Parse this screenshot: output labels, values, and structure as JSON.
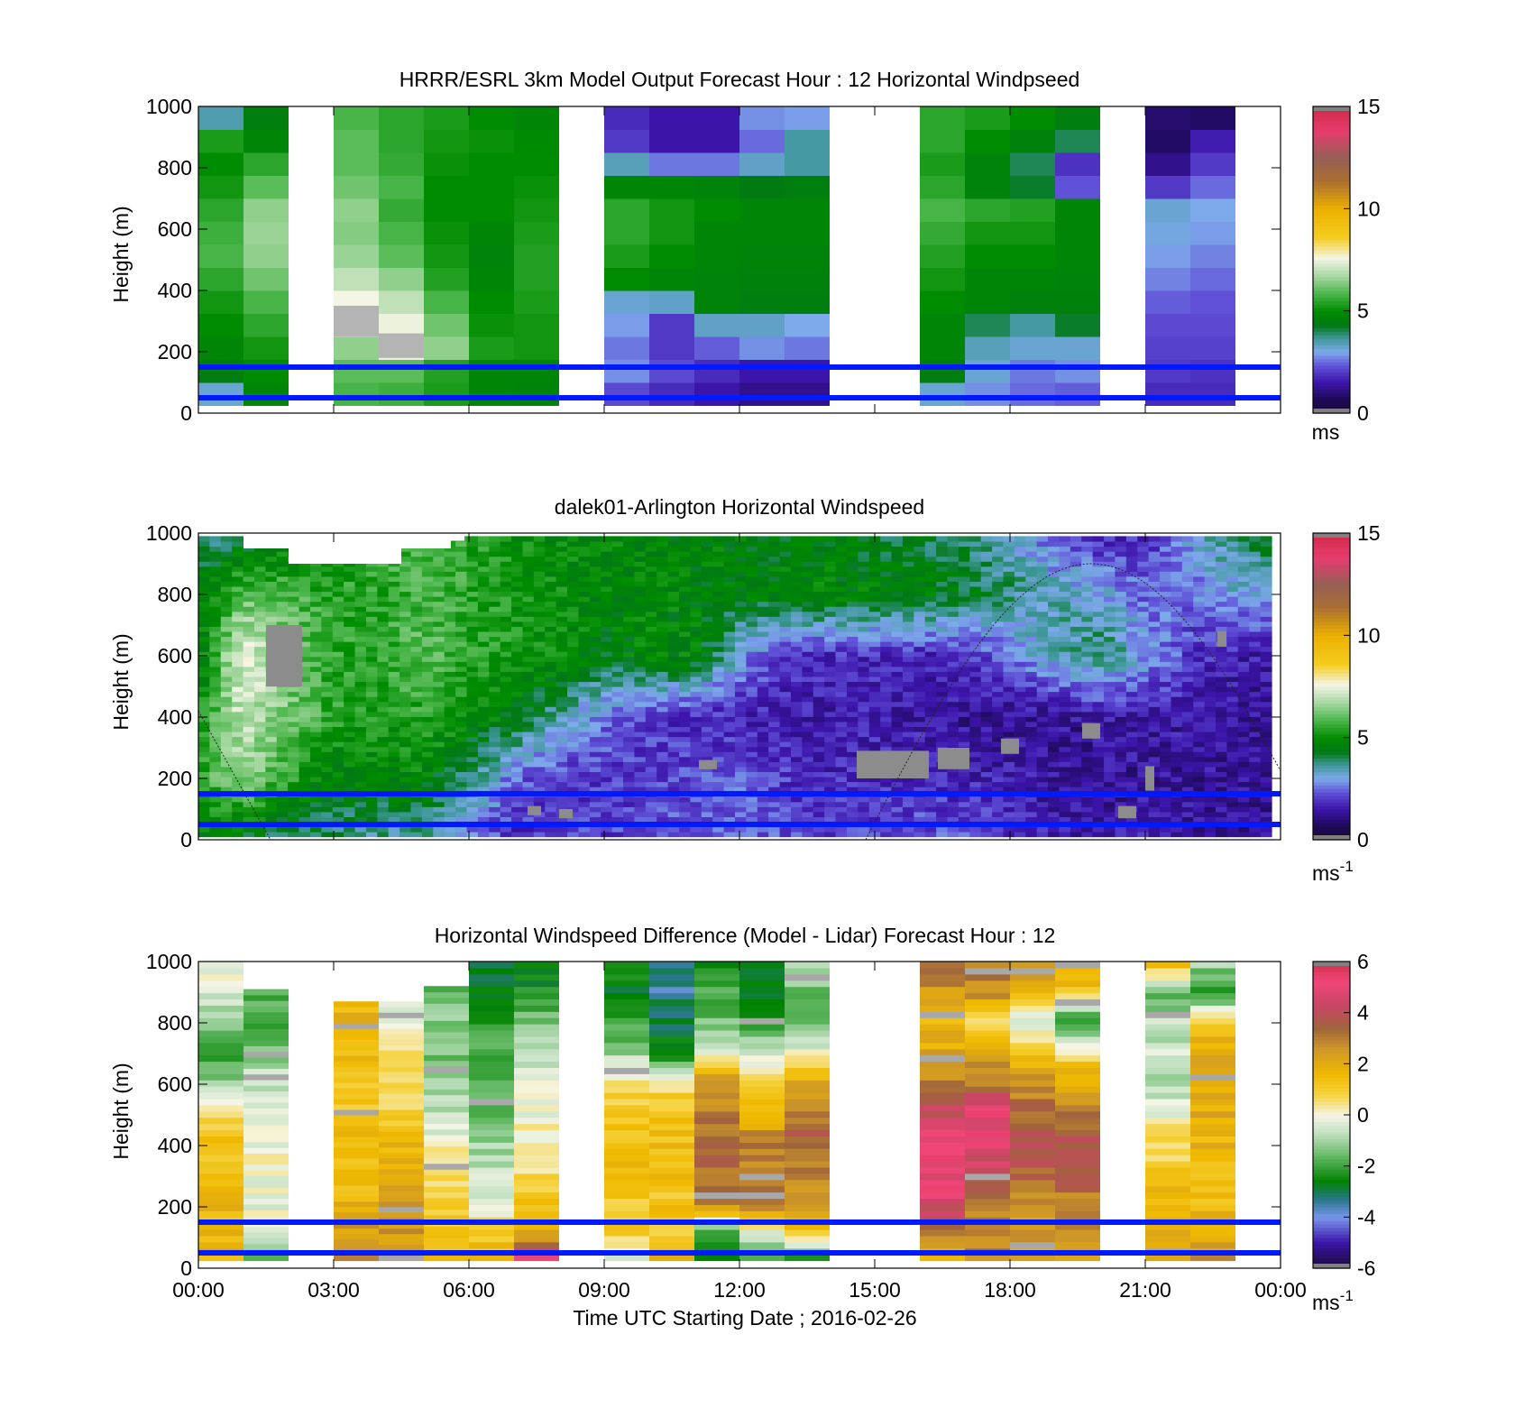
{
  "figure": {
    "xlabel": "Time UTC  Starting Date ; 2016-02-26",
    "xticks": [
      "00:00",
      "03:00",
      "06:00",
      "09:00",
      "12:00",
      "15:00",
      "18:00",
      "21:00",
      "00:00"
    ]
  },
  "chart_data": [
    {
      "type": "heatmap",
      "title": "HRRR/ESRL 3km Model Output   Forecast Hour : 12 Horizontal Windpseed",
      "ylabel": "Height (m)",
      "ylim": [
        0,
        1000
      ],
      "xlim_hours": [
        0,
        24
      ],
      "yticks": [
        "0",
        "200",
        "400",
        "600",
        "800",
        "1000"
      ],
      "colorbar": {
        "ticks": [
          "0",
          "5",
          "10",
          "15"
        ],
        "values": [
          0,
          5,
          10,
          15
        ],
        "range": [
          0,
          15
        ],
        "unit": "ms"
      },
      "hlines_m": [
        150,
        50
      ],
      "cols": [
        {
          "t0": 0,
          "t1": 1,
          "v": [
            3.2,
            4.5,
            4.8,
            5.0,
            5.2,
            5.5,
            5.8,
            5.7,
            5.5,
            5.2,
            5.0,
            5.3,
            3.5
          ]
        },
        {
          "t0": 1,
          "t1": 2,
          "v": [
            4.8,
            5.0,
            5.2,
            5.5,
            5.8,
            6.2,
            6.5,
            6.6,
            6.5,
            6.0,
            5.5,
            4.8,
            4.5
          ]
        },
        {
          "t0": 3,
          "t1": 4,
          "v": [
            5.8,
            6.0,
            6.5,
            7.0,
            7.6,
            7.0,
            6.6,
            6.4,
            6.5,
            6.2,
            6.0,
            6.0,
            5.8
          ]
        },
        {
          "t0": 4,
          "t1": 5,
          "v": [
            5.7,
            6.0,
            7.5,
            7.5,
            7.0,
            6.5,
            6.0,
            5.8,
            5.6,
            5.8,
            5.6,
            5.5,
            5.5
          ]
        },
        {
          "t0": 5,
          "t1": 6,
          "v": [
            5.3,
            5.4,
            6.5,
            6.2,
            5.8,
            5.4,
            5.2,
            5.1,
            5.0,
            5.0,
            5.1,
            5.2,
            5.3
          ]
        },
        {
          "t0": 6,
          "t1": 7,
          "v": [
            4.8,
            4.8,
            5.3,
            5.1,
            5.0,
            4.8,
            4.7,
            4.8,
            5.0,
            5.0,
            5.0,
            5.1,
            5.0
          ]
        },
        {
          "t0": 7,
          "t1": 8,
          "v": [
            4.7,
            4.8,
            5.2,
            5.2,
            5.3,
            5.4,
            5.4,
            5.3,
            5.2,
            5.1,
            5.0,
            4.9,
            4.8
          ]
        },
        {
          "t0": 9,
          "t1": 10,
          "v": [
            2.2,
            2.8,
            2.6,
            2.9,
            3.2,
            5.0,
            5.3,
            5.5,
            5.5,
            4.8,
            3.4,
            2.0,
            1.8
          ]
        },
        {
          "t0": 10,
          "t1": 11,
          "v": [
            1.8,
            2.2,
            2.0,
            2.0,
            3.3,
            4.8,
            5.0,
            5.2,
            5.2,
            4.8,
            2.6,
            1.5,
            1.5
          ]
        },
        {
          "t0": 11,
          "t1": 12,
          "v": [
            1.5,
            1.8,
            2.4,
            3.3,
            4.7,
            4.7,
            4.8,
            4.8,
            5.0,
            4.7,
            2.6,
            1.5,
            1.5
          ]
        },
        {
          "t0": 12,
          "t1": 13,
          "v": [
            1.2,
            1.5,
            2.8,
            3.3,
            4.5,
            4.6,
            4.7,
            4.8,
            4.8,
            4.4,
            3.3,
            2.5,
            2.8
          ]
        },
        {
          "t0": 13,
          "t1": 14,
          "v": [
            1.2,
            1.5,
            2.6,
            3.0,
            4.5,
            4.6,
            4.7,
            4.8,
            4.8,
            4.5,
            3.6,
            3.6,
            2.9
          ]
        },
        {
          "t0": 16,
          "t1": 17,
          "v": [
            3.2,
            4.5,
            4.8,
            4.8,
            5.0,
            5.2,
            5.4,
            5.6,
            5.8,
            5.5,
            5.3,
            5.5,
            5.5
          ]
        },
        {
          "t0": 17,
          "t1": 18,
          "v": [
            2.8,
            3.2,
            3.4,
            4.0,
            4.8,
            4.8,
            5.0,
            5.2,
            5.5,
            4.7,
            4.7,
            5.0,
            5.3
          ]
        },
        {
          "t0": 18,
          "t1": 19,
          "v": [
            2.5,
            2.6,
            3.2,
            3.6,
            4.6,
            4.8,
            5.0,
            5.2,
            5.4,
            4.2,
            4.0,
            4.6,
            5.0
          ]
        },
        {
          "t0": 19,
          "t1": 20,
          "v": [
            2.4,
            2.8,
            3.2,
            4.2,
            4.6,
            4.7,
            4.8,
            4.8,
            4.8,
            2.3,
            1.9,
            4.0,
            4.5
          ]
        },
        {
          "t0": 21,
          "t1": 22,
          "v": [
            1.8,
            2.0,
            2.1,
            2.2,
            2.4,
            2.7,
            2.9,
            3.1,
            3.2,
            2.0,
            1.2,
            0.8,
            0.9
          ]
        },
        {
          "t0": 22,
          "t1": 23,
          "v": [
            1.8,
            1.9,
            2.1,
            2.2,
            2.3,
            2.5,
            2.7,
            2.9,
            3.0,
            2.5,
            2.0,
            1.6,
            0.8
          ]
        }
      ]
    },
    {
      "type": "heatmap",
      "title": "dalek01-Arlington  Horizontal Windspeed",
      "ylabel": "Height (m)",
      "ylim": [
        0,
        1000
      ],
      "xlim_hours": [
        0,
        24
      ],
      "yticks": [
        "0",
        "200",
        "400",
        "600",
        "800",
        "1000"
      ],
      "colorbar": {
        "ticks": [
          "0",
          "5",
          "10",
          "15"
        ],
        "values": [
          0,
          5,
          10,
          15
        ],
        "range": [
          0,
          15
        ],
        "unit_base": "ms",
        "unit_exp": "-1"
      },
      "hlines_m": [
        150,
        50
      ],
      "z_heights_m": [
        0,
        200,
        400,
        600,
        800,
        1000
      ],
      "z_hours": [
        0,
        1,
        2,
        3,
        4,
        5,
        6,
        7,
        8,
        9,
        10,
        11,
        12,
        13,
        14,
        15,
        16,
        17,
        18,
        19,
        20,
        21,
        22,
        23,
        24
      ],
      "z": [
        [
          4.5,
          4.2,
          4.0,
          3.8,
          3.5,
          3.5,
          2.5,
          1.8,
          2.0,
          2.0,
          2.2,
          2.5,
          2.5,
          2.2,
          2.0,
          2.2,
          2.4,
          2.2,
          2.0,
          1.6,
          1.5,
          1.6,
          1.5,
          1.3,
          1.2
        ],
        [
          5.5,
          6.5,
          5.5,
          4.5,
          4.8,
          4.8,
          3.8,
          2.5,
          2.0,
          2.0,
          2.0,
          2.2,
          2.4,
          2.0,
          1.8,
          1.8,
          1.8,
          1.7,
          1.6,
          1.4,
          1.3,
          1.3,
          1.3,
          1.3,
          1.2
        ],
        [
          5.0,
          7.2,
          6.2,
          5.5,
          5.2,
          5.5,
          5.0,
          4.5,
          3.5,
          2.5,
          2.0,
          1.8,
          1.7,
          1.6,
          1.6,
          1.6,
          1.5,
          1.3,
          1.2,
          1.3,
          1.4,
          1.5,
          1.5,
          1.4,
          1.3
        ],
        [
          4.5,
          7.5,
          6.3,
          5.5,
          5.5,
          6.0,
          5.5,
          5.2,
          5.0,
          4.5,
          4.8,
          4.7,
          3.0,
          2.0,
          1.8,
          1.8,
          1.7,
          1.8,
          2.6,
          3.3,
          4.0,
          3.0,
          2.0,
          1.6,
          1.5
        ],
        [
          4.5,
          6.0,
          5.8,
          5.5,
          5.5,
          5.8,
          5.5,
          5.2,
          5.0,
          4.8,
          4.8,
          4.7,
          4.6,
          4.7,
          4.8,
          4.7,
          4.6,
          4.4,
          3.8,
          3.5,
          3.2,
          2.4,
          2.6,
          3.0,
          3.2
        ],
        [
          3.5,
          4.0,
          4.5,
          5.0,
          5.5,
          5.8,
          5.5,
          5.0,
          4.8,
          4.8,
          4.8,
          4.7,
          4.6,
          4.5,
          4.4,
          4.3,
          4.2,
          3.8,
          3.3,
          2.2,
          1.6,
          1.8,
          3.0,
          4.0,
          4.3
        ]
      ],
      "gray_cells": [
        {
          "t0": 1.5,
          "t1": 2.3,
          "h0": 500,
          "h1": 700
        },
        {
          "t0": 14.6,
          "t1": 16.2,
          "h0": 200,
          "h1": 290
        },
        {
          "t0": 16.4,
          "t1": 17.1,
          "h0": 230,
          "h1": 300
        },
        {
          "t0": 17.8,
          "t1": 18.2,
          "h0": 280,
          "h1": 330
        },
        {
          "t0": 19.6,
          "t1": 20.0,
          "h0": 330,
          "h1": 380
        },
        {
          "t0": 21.0,
          "t1": 21.2,
          "h0": 160,
          "h1": 240
        },
        {
          "t0": 11.1,
          "t1": 11.5,
          "h0": 230,
          "h1": 260
        },
        {
          "t0": 8.0,
          "t1": 8.3,
          "h0": 70,
          "h1": 100
        },
        {
          "t0": 7.3,
          "t1": 7.6,
          "h0": 80,
          "h1": 110
        },
        {
          "t0": 20.4,
          "t1": 20.8,
          "h0": 70,
          "h1": 110
        },
        {
          "t0": 22.6,
          "t1": 22.8,
          "h0": 630,
          "h1": 680
        }
      ],
      "curve_peak_height_m": 900,
      "curve_peak_hour": 19.8
    },
    {
      "type": "heatmap",
      "title": "Horizontal Windspeed Difference (Model - Lidar) Forecast Hour : 12",
      "ylabel": "Height (m)",
      "ylim": [
        0,
        1000
      ],
      "xlim_hours": [
        0,
        24
      ],
      "yticks": [
        "0",
        "200",
        "400",
        "600",
        "800",
        "1000"
      ],
      "colorbar": {
        "ticks": [
          "-6",
          "-4",
          "-2",
          "0",
          "2",
          "4",
          "6"
        ],
        "values": [
          -6,
          -4,
          -2,
          0,
          2,
          4,
          6
        ],
        "range": [
          -6,
          6
        ],
        "unit_base": "ms",
        "unit_exp": "-1"
      },
      "hlines_m": [
        150,
        50
      ],
      "cols": [
        {
          "t0": 0,
          "t1": 1,
          "top": 1000,
          "z": [
            1.8,
            1.6,
            1.5,
            1.5,
            1.2,
            0.5,
            -1.5,
            -2.2,
            -1.2,
            -0.4,
            -0.2
          ]
        },
        {
          "t0": 1,
          "t1": 2,
          "top": 910,
          "z": [
            -1.5,
            -0.3,
            -0.2,
            -0.2,
            0.0,
            -0.4,
            -0.6,
            -0.8,
            -1.5,
            -2.3,
            -1.5
          ]
        },
        {
          "t0": 3,
          "t1": 4,
          "top": 870,
          "z": [
            2.8,
            2.5,
            2.0,
            1.5,
            1.5,
            1.5,
            1.0,
            1.2,
            1.5,
            1.6,
            1.8
          ]
        },
        {
          "t0": 4,
          "t1": 5,
          "top": 870,
          "z": [
            2.5,
            2.5,
            2.5,
            2.0,
            1.8,
            1.5,
            0.8,
            0.6,
            0.4,
            -0.2,
            0.0
          ]
        },
        {
          "t0": 5,
          "t1": 6,
          "top": 920,
          "z": [
            1.5,
            1.2,
            1.0,
            0.6,
            0.2,
            -0.4,
            -0.8,
            -1.2,
            -1.5,
            -1.2,
            -1.8
          ]
        },
        {
          "t0": 6,
          "t1": 7,
          "top": 1000,
          "z": [
            1.5,
            1.0,
            -0.3,
            -0.5,
            -1.0,
            -1.5,
            -1.5,
            -1.8,
            -2.0,
            -2.5,
            -2.8
          ]
        },
        {
          "t0": 7,
          "t1": 8,
          "top": 1000,
          "z": [
            5.0,
            2.0,
            1.2,
            0.6,
            0.2,
            0.0,
            -0.2,
            -1.0,
            -1.5,
            -2.5,
            -2.8
          ]
        },
        {
          "t0": 9,
          "t1": 10,
          "top": 1000,
          "z": [
            -0.5,
            1.0,
            1.2,
            1.5,
            1.5,
            1.0,
            0.5,
            -1.2,
            -2.0,
            -2.5,
            -2.5
          ]
        },
        {
          "t0": 10,
          "t1": 11,
          "top": 1000,
          "z": [
            1.5,
            1.2,
            1.2,
            1.5,
            1.5,
            1.2,
            0.5,
            -2.8,
            -3.0,
            -3.5,
            -3.5
          ]
        },
        {
          "t0": 11,
          "t1": 12,
          "top": 1000,
          "z": [
            -2.5,
            -1.5,
            3.0,
            3.2,
            3.5,
            3.0,
            2.5,
            0.0,
            -1.5,
            -2.0,
            -2.8
          ]
        },
        {
          "t0": 12,
          "t1": 13,
          "top": 1000,
          "z": [
            -1.5,
            -0.5,
            3.5,
            3.0,
            3.0,
            1.5,
            0.5,
            -0.5,
            -2.0,
            -2.5,
            -2.5
          ]
        },
        {
          "t0": 13,
          "t1": 14,
          "top": 1000,
          "z": [
            -2.5,
            1.0,
            2.5,
            3.0,
            3.5,
            3.2,
            1.8,
            0.0,
            -1.8,
            -1.5,
            -0.5
          ]
        },
        {
          "t0": 16,
          "t1": 17,
          "top": 1000,
          "z": [
            1.2,
            3.5,
            4.8,
            5.0,
            5.2,
            4.2,
            3.0,
            2.0,
            1.8,
            2.5,
            3.5
          ]
        },
        {
          "t0": 17,
          "t1": 18,
          "top": 1000,
          "z": [
            3.0,
            2.5,
            3.5,
            4.2,
            5.0,
            4.8,
            3.0,
            2.5,
            0.5,
            2.8,
            3.2
          ]
        },
        {
          "t0": 18,
          "t1": 19,
          "top": 1000,
          "z": [
            2.5,
            2.5,
            2.8,
            3.5,
            3.8,
            3.5,
            2.5,
            1.5,
            -0.5,
            1.8,
            3.0
          ]
        },
        {
          "t0": 19,
          "t1": 20,
          "top": 1000,
          "z": [
            2.5,
            2.5,
            3.0,
            3.5,
            3.8,
            3.0,
            2.0,
            0.5,
            -2.5,
            1.0,
            2.5
          ]
        },
        {
          "t0": 21,
          "t1": 22,
          "top": 1000,
          "z": [
            2.0,
            2.0,
            1.5,
            1.2,
            0.5,
            0.0,
            -1.0,
            -0.5,
            -0.8,
            -1.5,
            1.5
          ]
        },
        {
          "t0": 22,
          "t1": 23,
          "top": 1000,
          "z": [
            2.5,
            2.0,
            1.5,
            1.5,
            1.8,
            2.0,
            2.2,
            2.0,
            1.0,
            -2.5,
            -1.0
          ]
        }
      ]
    }
  ]
}
